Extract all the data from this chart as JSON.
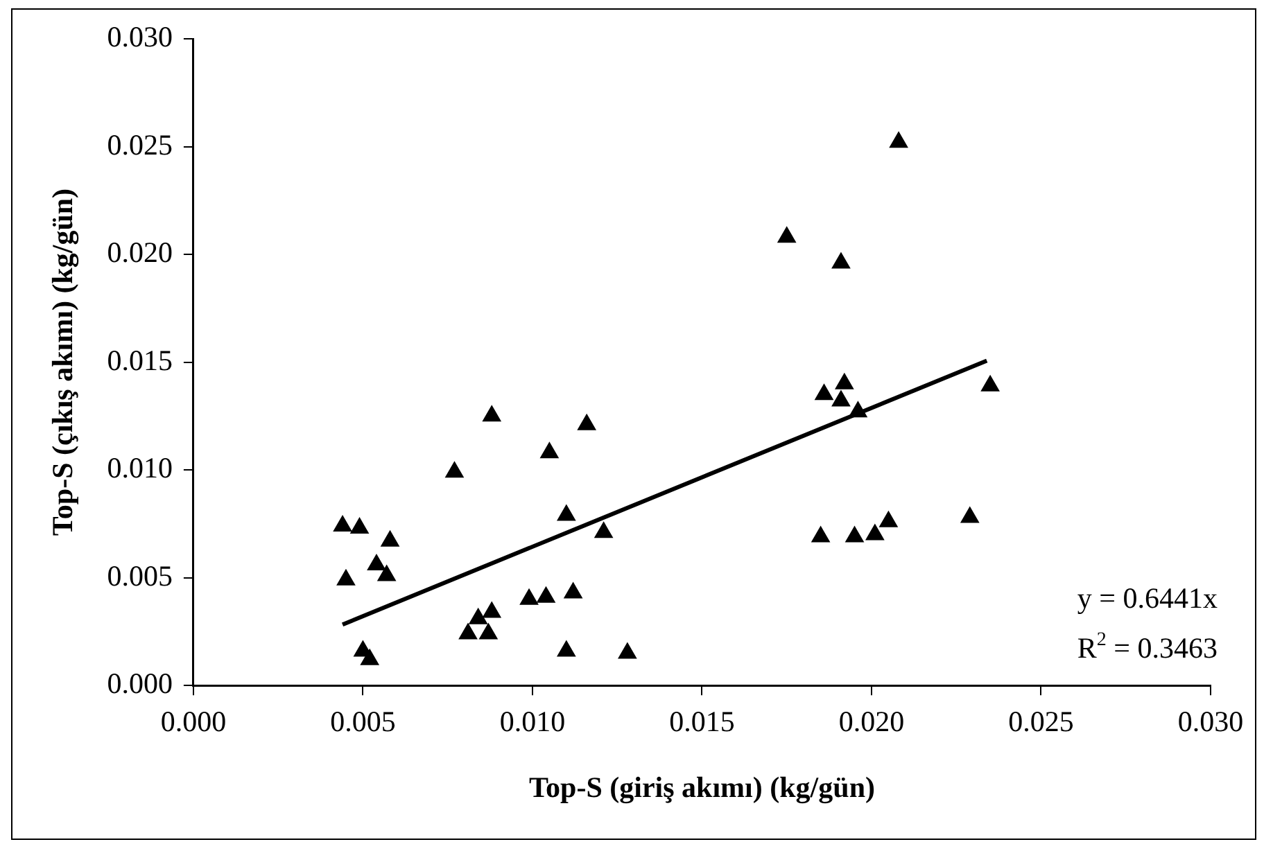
{
  "chart_data": {
    "type": "scatter",
    "xlabel": "Top-S (giriş akımı) (kg/gün)",
    "ylabel": "Top-S (çıkış akımı) (kg/gün)",
    "xlim": [
      0,
      0.03
    ],
    "ylim": [
      0,
      0.03
    ],
    "xticks": [
      {
        "value": 0,
        "label": "0.000"
      },
      {
        "value": 0.005,
        "label": "0.005"
      },
      {
        "value": 0.01,
        "label": "0.010"
      },
      {
        "value": 0.015,
        "label": "0.015"
      },
      {
        "value": 0.02,
        "label": "0.020"
      },
      {
        "value": 0.025,
        "label": "0.025"
      },
      {
        "value": 0.03,
        "label": "0.030"
      }
    ],
    "yticks": [
      {
        "value": 0,
        "label": "0.000"
      },
      {
        "value": 0.005,
        "label": "0.005"
      },
      {
        "value": 0.01,
        "label": "0.010"
      },
      {
        "value": 0.015,
        "label": "0.015"
      },
      {
        "value": 0.02,
        "label": "0.020"
      },
      {
        "value": 0.025,
        "label": "0.025"
      },
      {
        "value": 0.03,
        "label": "0.030"
      }
    ],
    "grid": false,
    "legend": false,
    "marker": "triangle",
    "series": [
      {
        "color": "#000000",
        "x": [
          0.0044,
          0.0049,
          0.0058,
          0.0054,
          0.0057,
          0.0045,
          0.005,
          0.0052,
          0.0088,
          0.0077,
          0.0105,
          0.0116,
          0.011,
          0.0121,
          0.0084,
          0.0088,
          0.0081,
          0.0087,
          0.0099,
          0.0104,
          0.0112,
          0.011,
          0.0128,
          0.0175,
          0.0191,
          0.0186,
          0.0192,
          0.0191,
          0.0196,
          0.0235,
          0.0185,
          0.0195,
          0.0201,
          0.0205,
          0.0229,
          0.0208
        ],
        "values": [
          0.0074,
          0.0073,
          0.0067,
          0.0056,
          0.0051,
          0.0049,
          0.0016,
          0.0012,
          0.0125,
          0.0099,
          0.0108,
          0.0121,
          0.0079,
          0.0071,
          0.0031,
          0.0034,
          0.0024,
          0.0024,
          0.004,
          0.0041,
          0.0043,
          0.0016,
          0.0015,
          0.0208,
          0.0196,
          0.0135,
          0.014,
          0.0132,
          0.0127,
          0.0139,
          0.0069,
          0.0069,
          0.007,
          0.0076,
          0.0078,
          0.0252
        ]
      },
      {
        "type": "line",
        "color": "#000000",
        "marker": "none",
        "x": [
          0.0044,
          0.0234
        ],
        "values": [
          0.00283,
          0.01507
        ]
      }
    ],
    "annotations": [
      "y = 0.6441x",
      "R$^{2}$ = 0.3463"
    ]
  }
}
